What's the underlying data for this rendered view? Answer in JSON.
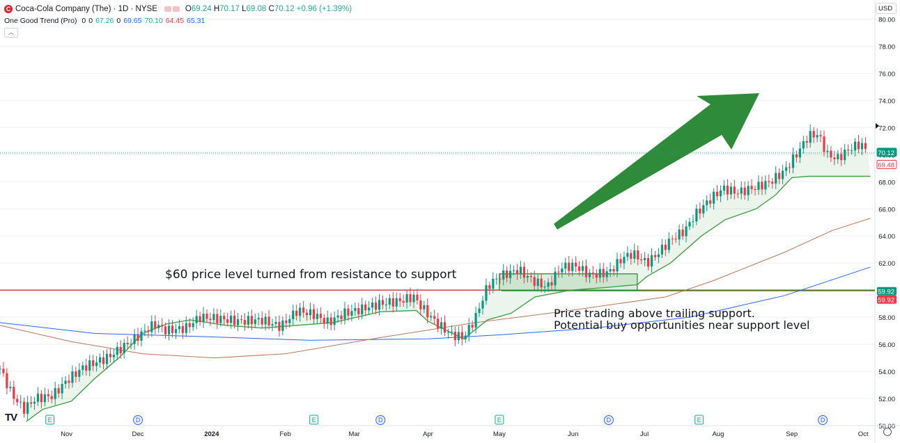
{
  "header": {
    "logo_letter": "C",
    "symbol": "Coca-Cola Company (The) · 1D · NYSE",
    "open_label": "O",
    "open": "69.24",
    "high_label": "H",
    "high": "70.17",
    "low_label": "L",
    "low": "69.08",
    "close_label": "C",
    "close": "70.12",
    "change": "+0.96 (+1.39%)"
  },
  "indicator": {
    "name": "One Good Trend (Pro)",
    "values": [
      "0",
      "0",
      "67.26",
      "0",
      "69.65",
      "70.10",
      "64.45",
      "65.31"
    ],
    "value_colors": [
      "#131722",
      "#131722",
      "#22ab94",
      "#131722",
      "#2962ff",
      "#22ab94",
      "#f23645",
      "#2962ff"
    ]
  },
  "currency": "USD",
  "chart_data": {
    "type": "candlestick",
    "y_axis": {
      "min": 50,
      "max": 81,
      "ticks": [
        "80.00",
        "78.00",
        "76.00",
        "74.00",
        "72.00",
        "70.00",
        "68.00",
        "66.00",
        "64.00",
        "62.00",
        "60.00",
        "58.00",
        "56.00",
        "54.00",
        "52.00",
        "50.00"
      ]
    },
    "x_ticks": [
      "Nov",
      "Dec",
      "2024",
      "Feb",
      "Mar",
      "Apr",
      "May",
      "Jun",
      "Jul",
      "Aug",
      "Sep",
      "Oct"
    ],
    "x_tick_days": [
      28,
      58,
      89,
      120,
      149,
      180,
      210,
      241,
      271,
      302,
      333,
      363
    ],
    "x_range_days": [
      0,
      365
    ],
    "price_path": [
      [
        0,
        54.2
      ],
      [
        5,
        52.3
      ],
      [
        10,
        51.2
      ],
      [
        15,
        52.0
      ],
      [
        22,
        52.2
      ],
      [
        28,
        53.3
      ],
      [
        35,
        54.3
      ],
      [
        45,
        55.0
      ],
      [
        55,
        56.2
      ],
      [
        65,
        57.5
      ],
      [
        70,
        57.0
      ],
      [
        78,
        57.2
      ],
      [
        84,
        58.0
      ],
      [
        92,
        57.9
      ],
      [
        100,
        57.7
      ],
      [
        110,
        57.8
      ],
      [
        118,
        57.3
      ],
      [
        125,
        58.5
      ],
      [
        132,
        58.2
      ],
      [
        138,
        57.6
      ],
      [
        145,
        58.3
      ],
      [
        152,
        58.6
      ],
      [
        160,
        59.0
      ],
      [
        168,
        59.2
      ],
      [
        174,
        59.5
      ],
      [
        178,
        58.6
      ],
      [
        184,
        57.5
      ],
      [
        190,
        56.7
      ],
      [
        195,
        56.5
      ],
      [
        200,
        58.0
      ],
      [
        205,
        60.3
      ],
      [
        210,
        61.0
      ],
      [
        218,
        61.5
      ],
      [
        224,
        60.7
      ],
      [
        230,
        60.2
      ],
      [
        236,
        61.7
      ],
      [
        242,
        61.8
      ],
      [
        248,
        61.1
      ],
      [
        256,
        61.3
      ],
      [
        262,
        62.4
      ],
      [
        266,
        62.7
      ],
      [
        272,
        62.0
      ],
      [
        276,
        62.6
      ],
      [
        282,
        63.7
      ],
      [
        288,
        64.4
      ],
      [
        292,
        65.5
      ],
      [
        298,
        66.6
      ],
      [
        304,
        67.5
      ],
      [
        310,
        67.2
      ],
      [
        318,
        67.6
      ],
      [
        324,
        68.0
      ],
      [
        330,
        68.8
      ],
      [
        336,
        70.3
      ],
      [
        340,
        71.4
      ],
      [
        344,
        71.5
      ],
      [
        348,
        70.0
      ],
      [
        352,
        69.7
      ],
      [
        358,
        70.5
      ],
      [
        362,
        70.8
      ],
      [
        365,
        70.12
      ]
    ],
    "trailing_support_path": [
      [
        11,
        50.3
      ],
      [
        18,
        51.2
      ],
      [
        30,
        51.8
      ],
      [
        40,
        53.5
      ],
      [
        50,
        55.0
      ],
      [
        60,
        56.8
      ],
      [
        70,
        57.5
      ],
      [
        80,
        57.8
      ],
      [
        95,
        57.4
      ],
      [
        110,
        57.2
      ],
      [
        125,
        57.4
      ],
      [
        140,
        57.6
      ],
      [
        160,
        58.4
      ],
      [
        175,
        58.5
      ],
      [
        180,
        57.7
      ],
      [
        195,
        56.4
      ],
      [
        205,
        57.8
      ],
      [
        215,
        58.3
      ],
      [
        225,
        59.5
      ],
      [
        240,
        60.0
      ],
      [
        255,
        60.2
      ],
      [
        268,
        60.4
      ],
      [
        272,
        61.0
      ],
      [
        282,
        62.0
      ],
      [
        295,
        64.0
      ],
      [
        305,
        65.2
      ],
      [
        318,
        66.0
      ],
      [
        326,
        67.0
      ],
      [
        333,
        68.3
      ],
      [
        340,
        68.4
      ],
      [
        366,
        68.4
      ]
    ],
    "ma_blue_path": [
      [
        0,
        57.6
      ],
      [
        40,
        56.8
      ],
      [
        80,
        56.6
      ],
      [
        130,
        56.3
      ],
      [
        180,
        56.4
      ],
      [
        210,
        56.7
      ],
      [
        250,
        57.2
      ],
      [
        290,
        58.0
      ],
      [
        330,
        59.6
      ],
      [
        366,
        61.7
      ]
    ],
    "ma_brown_path": [
      [
        0,
        57.4
      ],
      [
        30,
        56.2
      ],
      [
        60,
        55.3
      ],
      [
        90,
        55.0
      ],
      [
        120,
        55.3
      ],
      [
        160,
        56.5
      ],
      [
        200,
        57.6
      ],
      [
        240,
        58.5
      ],
      [
        280,
        59.5
      ],
      [
        300,
        60.7
      ],
      [
        330,
        62.8
      ],
      [
        350,
        64.4
      ],
      [
        366,
        65.3
      ]
    ],
    "resistance_support_level": 60.0,
    "right_labels": [
      {
        "text": "70.12",
        "value": 70.12,
        "bg": "#089981",
        "fg": "#ffffff"
      },
      {
        "text": "69.48",
        "value": 69.48,
        "bg": "#ffffff",
        "fg": "#f23645",
        "border": "#f23645"
      },
      {
        "text": "59.92",
        "value": 59.92,
        "bg": "#089981",
        "fg": "#ffffff"
      },
      {
        "text": "59.92",
        "value": 59.92,
        "bg": "#f23645",
        "fg": "#ffffff"
      }
    ],
    "event_markers": [
      {
        "day": 21,
        "label": "E",
        "kind": "earnings"
      },
      {
        "day": 58,
        "label": "D",
        "kind": "dividend"
      },
      {
        "day": 132,
        "label": "E",
        "kind": "earnings"
      },
      {
        "day": 160,
        "label": "D",
        "kind": "dividend"
      },
      {
        "day": 210,
        "label": "E",
        "kind": "earnings"
      },
      {
        "day": 256,
        "label": "D",
        "kind": "dividend"
      },
      {
        "day": 294,
        "label": "E",
        "kind": "earnings"
      },
      {
        "day": 346,
        "label": "D",
        "kind": "dividend"
      }
    ],
    "annotations": [
      "$60 price level turned from resistance to support",
      "Price trading above trailing support.",
      "Potential buy opportunities near support level"
    ],
    "colors": {
      "up": "#089981",
      "down": "#f23645",
      "support": "#43a047",
      "arrow": "#2e8b3a",
      "level": "#b71c1c"
    }
  },
  "branding": "TV"
}
